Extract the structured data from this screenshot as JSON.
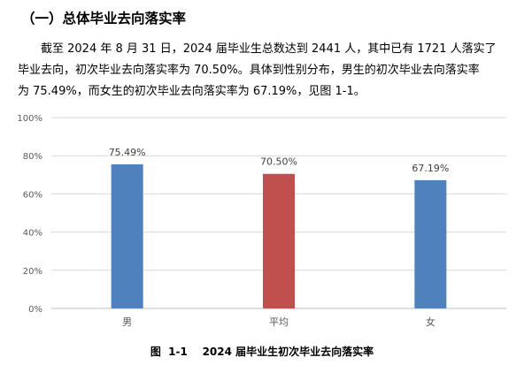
{
  "section_heading": "（一）总体毕业去向落实率",
  "paragraph_lines": [
    "截至 2024 年 8 月 31 日，2024 届毕业生总数达到 2441 人，其中已有 1721 人落实了",
    "毕业去向，初次毕业去向落实率为 70.50%。具体到性别分布，男生的初次毕业去向落实率",
    "为 75.49%，而女生的初次毕业去向落实率为 67.19%，见图 1-1。"
  ],
  "caption": "图  1-1    2024 届毕业生初次毕业去向落实率",
  "chart_data": {
    "type": "bar",
    "categories": [
      "男",
      "平均",
      "女"
    ],
    "values": [
      75.49,
      70.5,
      67.19
    ],
    "data_labels": [
      "75.49%",
      "70.50%",
      "67.19%"
    ],
    "colors": [
      "#4f81bd",
      "#c0504d",
      "#4f81bd"
    ],
    "ylim": [
      0,
      100
    ],
    "yticks": [
      0,
      20,
      40,
      60,
      80,
      100
    ],
    "ytick_labels": [
      "0%",
      "20%",
      "40%",
      "60%",
      "80%",
      "100%"
    ],
    "grid": true,
    "legend": "none"
  }
}
